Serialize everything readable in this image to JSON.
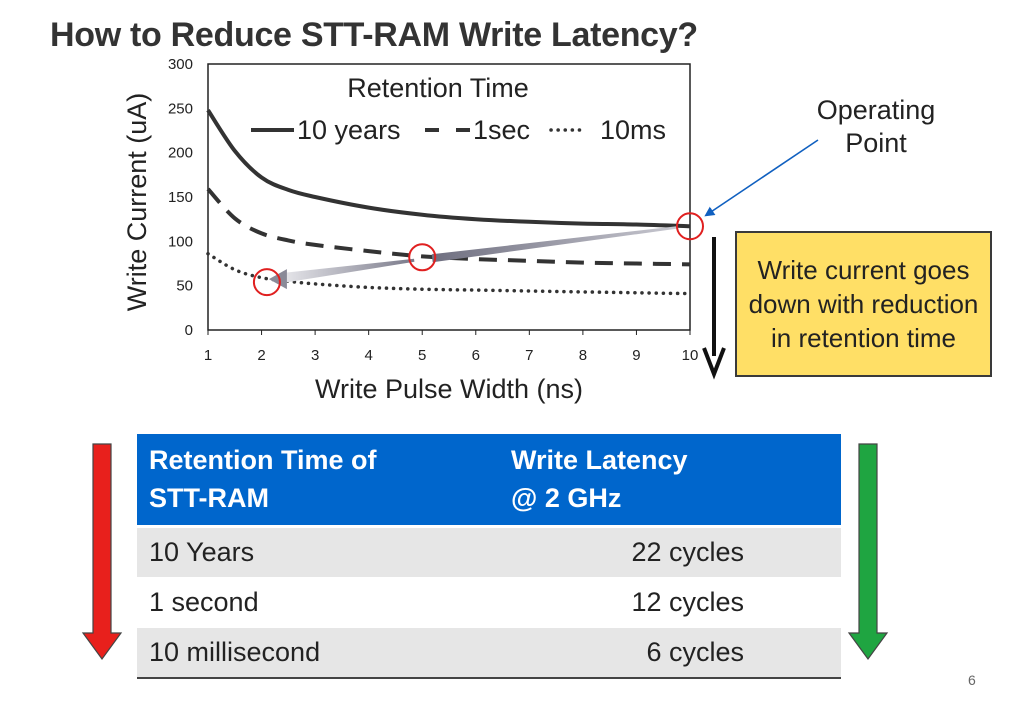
{
  "slide": {
    "title": "How to Reduce STT-RAM Write Latency?",
    "page_number": "6"
  },
  "chart_data": {
    "type": "line",
    "title": "",
    "xlabel": "Write Pulse Width (ns)",
    "ylabel": "Write Current (uA)",
    "xlim": [
      1,
      10
    ],
    "ylim": [
      0,
      300
    ],
    "x_ticks": [
      "1",
      "2",
      "3",
      "4",
      "5",
      "6",
      "7",
      "8",
      "9",
      "10"
    ],
    "y_ticks": [
      "0",
      "50",
      "100",
      "150",
      "200",
      "250",
      "300"
    ],
    "grid": false,
    "legend": {
      "title": "Retention Time",
      "placement": "top"
    },
    "series": [
      {
        "name": "10 years",
        "style": "solid",
        "x": [
          1,
          1.5,
          2,
          2.5,
          3,
          4,
          5,
          6,
          7,
          8,
          9,
          10
        ],
        "y": [
          248,
          202,
          172,
          158,
          150,
          138,
          130,
          125,
          122,
          120,
          119,
          117
        ]
      },
      {
        "name": "1sec",
        "style": "dashed",
        "x": [
          1,
          1.5,
          2,
          2.5,
          3,
          4,
          5,
          6,
          7,
          8,
          9,
          10
        ],
        "y": [
          159,
          126,
          109,
          101,
          96,
          89,
          83,
          80,
          78,
          76,
          75,
          74
        ]
      },
      {
        "name": "10ms",
        "style": "dotted",
        "x": [
          1,
          1.5,
          2,
          2.5,
          3,
          4,
          5,
          6,
          7,
          8,
          9,
          10
        ],
        "y": [
          86,
          68,
          59,
          55,
          52,
          48,
          46,
          45,
          44,
          43,
          42,
          41
        ]
      }
    ],
    "annotations": {
      "circle_points": [
        {
          "x": 10,
          "y": 117
        },
        {
          "x": 5,
          "y": 82
        },
        {
          "x": 2.1,
          "y": 54
        }
      ],
      "callout": "Operating\nPoint",
      "callout_target": {
        "x": 10,
        "y": 117
      }
    }
  },
  "note": {
    "text": "Write current goes down with reduction in retention time"
  },
  "table": {
    "headers": [
      "Retention Time of\nSTT-RAM",
      "Write Latency\n@ 2 GHz"
    ],
    "rows": [
      [
        "10 Years",
        "22 cycles"
      ],
      [
        "1 second",
        "12 cycles"
      ],
      [
        "10 millisecond",
        "6 cycles"
      ]
    ]
  },
  "colors": {
    "table_header": "#0066cc",
    "note_box": "#ffdf66",
    "left_arrow": "#e8201c",
    "right_arrow": "#1fa541",
    "circle": "#e02020",
    "callout_arrow": "#1060c0",
    "curve": "#333333"
  }
}
